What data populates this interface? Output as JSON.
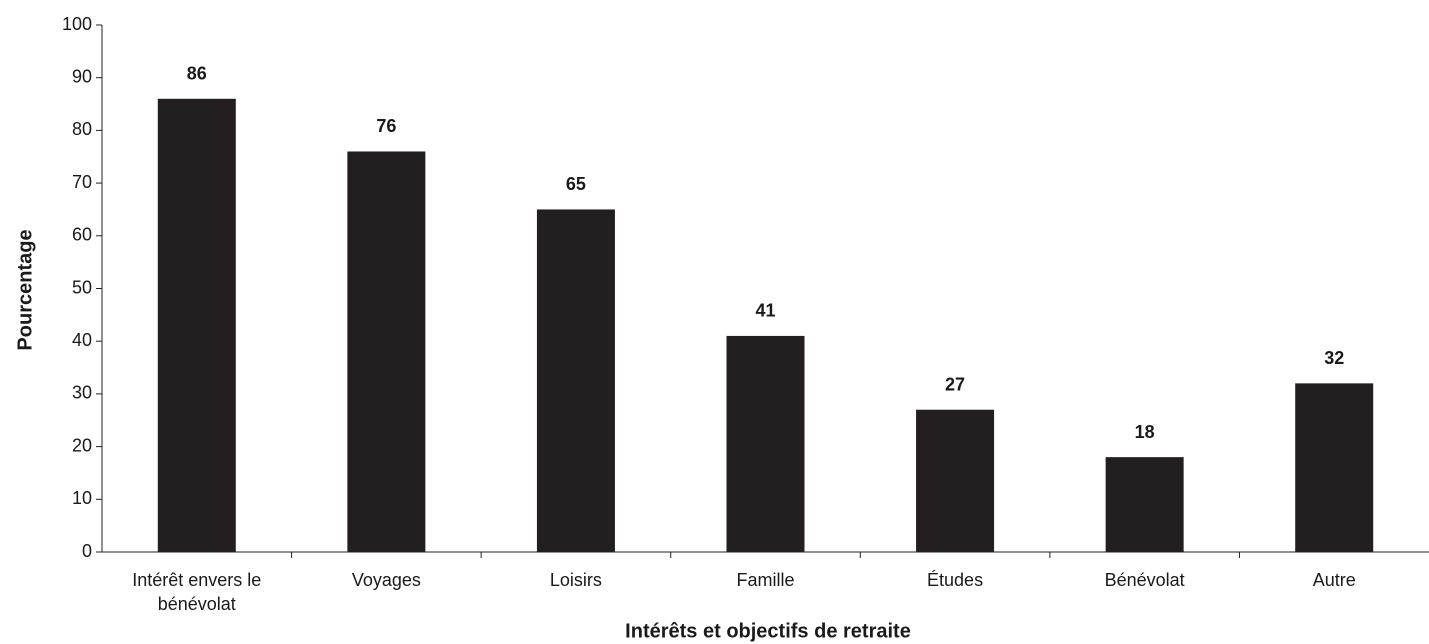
{
  "chart_data": {
    "type": "bar",
    "x_label": "Intérêts et objectifs de retraite",
    "y_label": "Pourcentage",
    "categories": [
      "Intérêt envers le bénévolat",
      "Voyages",
      "Loisirs",
      "Famille",
      "Études",
      "Bénévolat",
      "Autre"
    ],
    "values": [
      86,
      76,
      65,
      41,
      27,
      18,
      32
    ],
    "color": "#231f20",
    "ylim": [
      0,
      100
    ],
    "yticks": [
      0,
      10,
      20,
      30,
      40,
      50,
      60,
      70,
      80,
      90,
      100
    ],
    "grid": false
  }
}
